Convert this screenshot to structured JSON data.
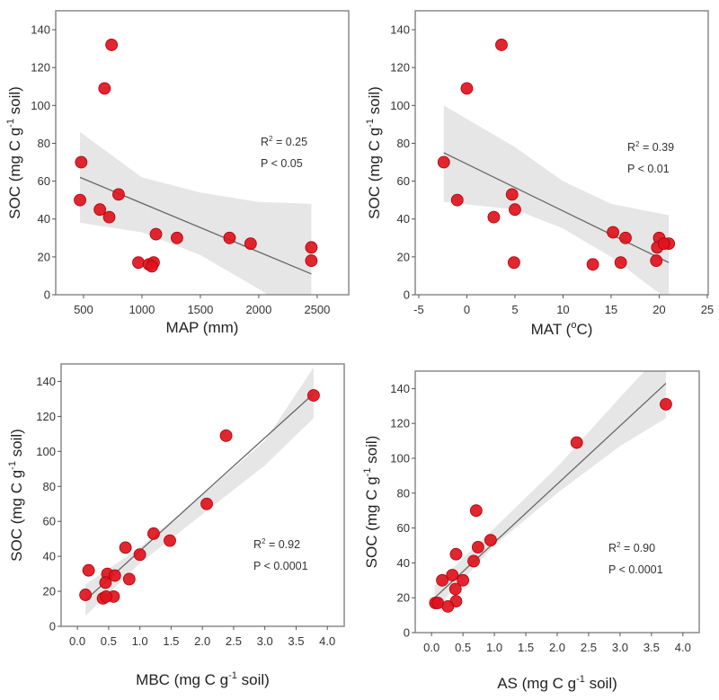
{
  "chart_data": [
    {
      "type": "scatter",
      "xlabel": {
        "main": "MAP (mm)"
      },
      "ylabel": {
        "pre": "SOC (mg C g",
        "sup": "-1",
        "post": " soil)"
      },
      "xlim": [
        262,
        2770
      ],
      "ylim": [
        0,
        150
      ],
      "xticks": [
        500,
        1000,
        1500,
        2000,
        2500
      ],
      "yticks": [
        0,
        20,
        40,
        60,
        80,
        100,
        120,
        140
      ],
      "stats": {
        "r_pre": "R",
        "r_sup": "2",
        "r_post": " = 0.25",
        "p": "P < 0.05"
      },
      "points": [
        [
          740,
          132
        ],
        [
          680,
          109
        ],
        [
          480,
          70
        ],
        [
          470,
          50
        ],
        [
          800,
          53
        ],
        [
          640,
          45
        ],
        [
          720,
          41
        ],
        [
          1120,
          32
        ],
        [
          1300,
          30
        ],
        [
          1750,
          30
        ],
        [
          1930,
          27
        ],
        [
          2450,
          25
        ],
        [
          2450,
          18
        ],
        [
          970,
          17
        ],
        [
          1060,
          16
        ],
        [
          1100,
          17
        ],
        [
          1085,
          15
        ]
      ],
      "fit": [
        [
          470,
          62
        ],
        [
          2450,
          11
        ]
      ],
      "ci_band": {
        "x": [
          470,
          1000,
          1500,
          2000,
          2450
        ],
        "upper": [
          86,
          62,
          54,
          49,
          48
        ],
        "lower": [
          38,
          33,
          21,
          3,
          -15
        ]
      },
      "grid": false
    },
    {
      "type": "scatter",
      "xlabel": {
        "main": "MAT (",
        "sup": "o",
        "post": "C)"
      },
      "ylabel": {
        "pre": "SOC (mg C g",
        "sup": "-1",
        "post": " soil)"
      },
      "xlim": [
        -5.37,
        25.1
      ],
      "ylim": [
        0,
        150
      ],
      "xticks": [
        -5,
        0,
        5,
        10,
        15,
        20,
        25
      ],
      "yticks": [
        0,
        20,
        40,
        60,
        80,
        100,
        120,
        140
      ],
      "stats": {
        "r_pre": "R",
        "r_sup": "2",
        "r_post": " = 0.39",
        "p": "P < 0.01"
      },
      "points": [
        [
          3.6,
          132
        ],
        [
          0,
          109
        ],
        [
          -2.4,
          70
        ],
        [
          -1,
          50
        ],
        [
          4.7,
          53
        ],
        [
          5,
          45
        ],
        [
          2.8,
          41
        ],
        [
          4.9,
          17
        ],
        [
          13.1,
          16
        ],
        [
          15.2,
          33
        ],
        [
          16.5,
          30
        ],
        [
          16,
          17
        ],
        [
          20,
          30
        ],
        [
          19.8,
          25
        ],
        [
          19.7,
          18
        ],
        [
          21,
          27
        ],
        [
          20.5,
          27
        ]
      ],
      "fit": [
        [
          -2.4,
          75
        ],
        [
          21,
          17
        ]
      ],
      "ci_band": {
        "x": [
          -2.4,
          5,
          10,
          15,
          21
        ],
        "upper": [
          100,
          78,
          60,
          48,
          42
        ],
        "lower": [
          49,
          45,
          35,
          20,
          -3
        ]
      },
      "grid": false
    },
    {
      "type": "scatter",
      "xlabel": {
        "main": "MBC (mg C g",
        "sup": "-1",
        "post": " soil)"
      },
      "ylabel": {
        "pre": "SOC (mg C g",
        "sup": "-1",
        "post": " soil)"
      },
      "xlim": [
        -0.26,
        4.27
      ],
      "ylim": [
        0,
        150
      ],
      "xticks": [
        "0.0",
        "0.5",
        "1.0",
        "1.5",
        "2.0",
        "2.5",
        "3.0",
        "3.5",
        "4.0"
      ],
      "yticks": [
        0,
        20,
        40,
        60,
        80,
        100,
        120,
        140
      ],
      "stats": {
        "r_pre": "R",
        "r_sup": "2",
        "r_post": " = 0.92",
        "p": "P < 0.0001"
      },
      "points": [
        [
          3.78,
          132
        ],
        [
          2.38,
          109
        ],
        [
          2.07,
          70
        ],
        [
          1.22,
          53
        ],
        [
          1.48,
          49
        ],
        [
          0.77,
          45
        ],
        [
          1.0,
          41
        ],
        [
          0.18,
          32
        ],
        [
          0.48,
          30
        ],
        [
          0.6,
          29
        ],
        [
          0.45,
          25
        ],
        [
          0.83,
          27
        ],
        [
          0.13,
          18
        ],
        [
          0.41,
          16
        ],
        [
          0.58,
          17
        ],
        [
          0.46,
          17
        ]
      ],
      "fit": [
        [
          0.13,
          15
        ],
        [
          3.78,
          133
        ]
      ],
      "ci_band": {
        "x": [
          0.13,
          1,
          2,
          3,
          3.78
        ],
        "upper": [
          24,
          45,
          75,
          106,
          148
        ],
        "lower": [
          6,
          36,
          64,
          92,
          119
        ]
      },
      "grid": false
    },
    {
      "type": "scatter",
      "xlabel": {
        "main": "AS (mg C g",
        "sup": "-1",
        "post": " soil)"
      },
      "ylabel": {
        "pre": "SOC (mg C g",
        "sup": "-1",
        "post": " soil)"
      },
      "xlim": [
        -0.26,
        4.26
      ],
      "ylim": [
        0,
        150
      ],
      "xticks": [
        "0.0",
        "0.5",
        "1.0",
        "1.5",
        "2.0",
        "2.5",
        "3.0",
        "3.5",
        "4.0"
      ],
      "yticks": [
        0,
        20,
        40,
        60,
        80,
        100,
        120,
        140
      ],
      "stats": {
        "r_pre": "R",
        "r_sup": "2",
        "r_post": " = 0.90",
        "p": "P < 0.0001"
      },
      "points": [
        [
          3.73,
          131
        ],
        [
          2.31,
          109
        ],
        [
          0.71,
          70
        ],
        [
          0.94,
          53
        ],
        [
          0.74,
          49
        ],
        [
          0.39,
          45
        ],
        [
          0.67,
          41
        ],
        [
          0.33,
          33
        ],
        [
          0.17,
          30
        ],
        [
          0.5,
          30
        ],
        [
          0.38,
          25
        ],
        [
          0.39,
          18
        ],
        [
          0.06,
          17
        ],
        [
          0.1,
          17
        ],
        [
          0.26,
          15
        ]
      ],
      "fit": [
        [
          0.05,
          20
        ],
        [
          3.73,
          143
        ]
      ],
      "ci_band": {
        "x": [
          0.05,
          1,
          2,
          3,
          3.73
        ],
        "upper": [
          27,
          60,
          95,
          135,
          163
        ],
        "lower": [
          13,
          50,
          80,
          107,
          123
        ]
      },
      "grid": false
    }
  ],
  "colors": {
    "point": "#e0131d",
    "point_edge": "#b0000a",
    "band": "#e6e6e6",
    "fit_line": "#666666",
    "frame": "#8a8a8a"
  }
}
